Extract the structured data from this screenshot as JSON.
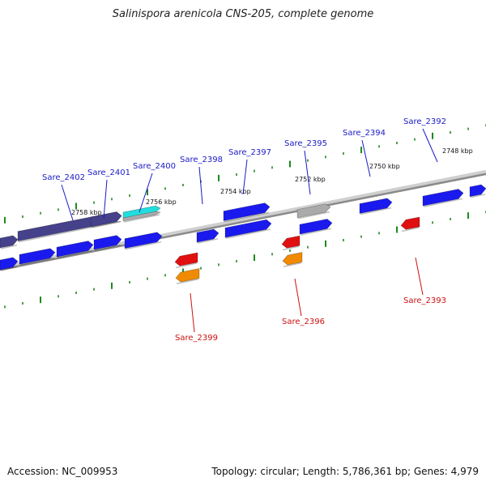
{
  "title": "Salinispora arenicola CNS-205, complete genome",
  "footer": {
    "accession": "Accession: NC_009953",
    "summary": "Topology: circular; Length: 5,786,361 bp; Genes: 4,979"
  },
  "colors": {
    "forward_gene": "#1a1aee",
    "forward_gene_dark": "#45418a",
    "highlight_gene": "#22dddd",
    "pseudo_gene": "#aaaaaa",
    "reverse_gene_red": "#e01010",
    "reverse_gene_orange": "#f08a00",
    "forward_label": "#1a1ac8",
    "reverse_label": "#cc1111",
    "tick": "#1e8a1e",
    "backbone": "#8a8a8a"
  },
  "scale_labels": [
    "2758 kbp",
    "2756 kbp",
    "2754 kbp",
    "2752 kbp",
    "2750 kbp",
    "2748 kbp"
  ],
  "genes": [
    {
      "id": "Sare_2402",
      "strand": "forward"
    },
    {
      "id": "Sare_2401",
      "strand": "forward"
    },
    {
      "id": "Sare_2400",
      "strand": "forward"
    },
    {
      "id": "Sare_2398",
      "strand": "forward"
    },
    {
      "id": "Sare_2397",
      "strand": "forward"
    },
    {
      "id": "Sare_2395",
      "strand": "forward"
    },
    {
      "id": "Sare_2394",
      "strand": "forward"
    },
    {
      "id": "Sare_2392",
      "strand": "forward"
    },
    {
      "id": "Sare_2399",
      "strand": "reverse"
    },
    {
      "id": "Sare_2396",
      "strand": "reverse"
    },
    {
      "id": "Sare_2393",
      "strand": "reverse"
    }
  ]
}
